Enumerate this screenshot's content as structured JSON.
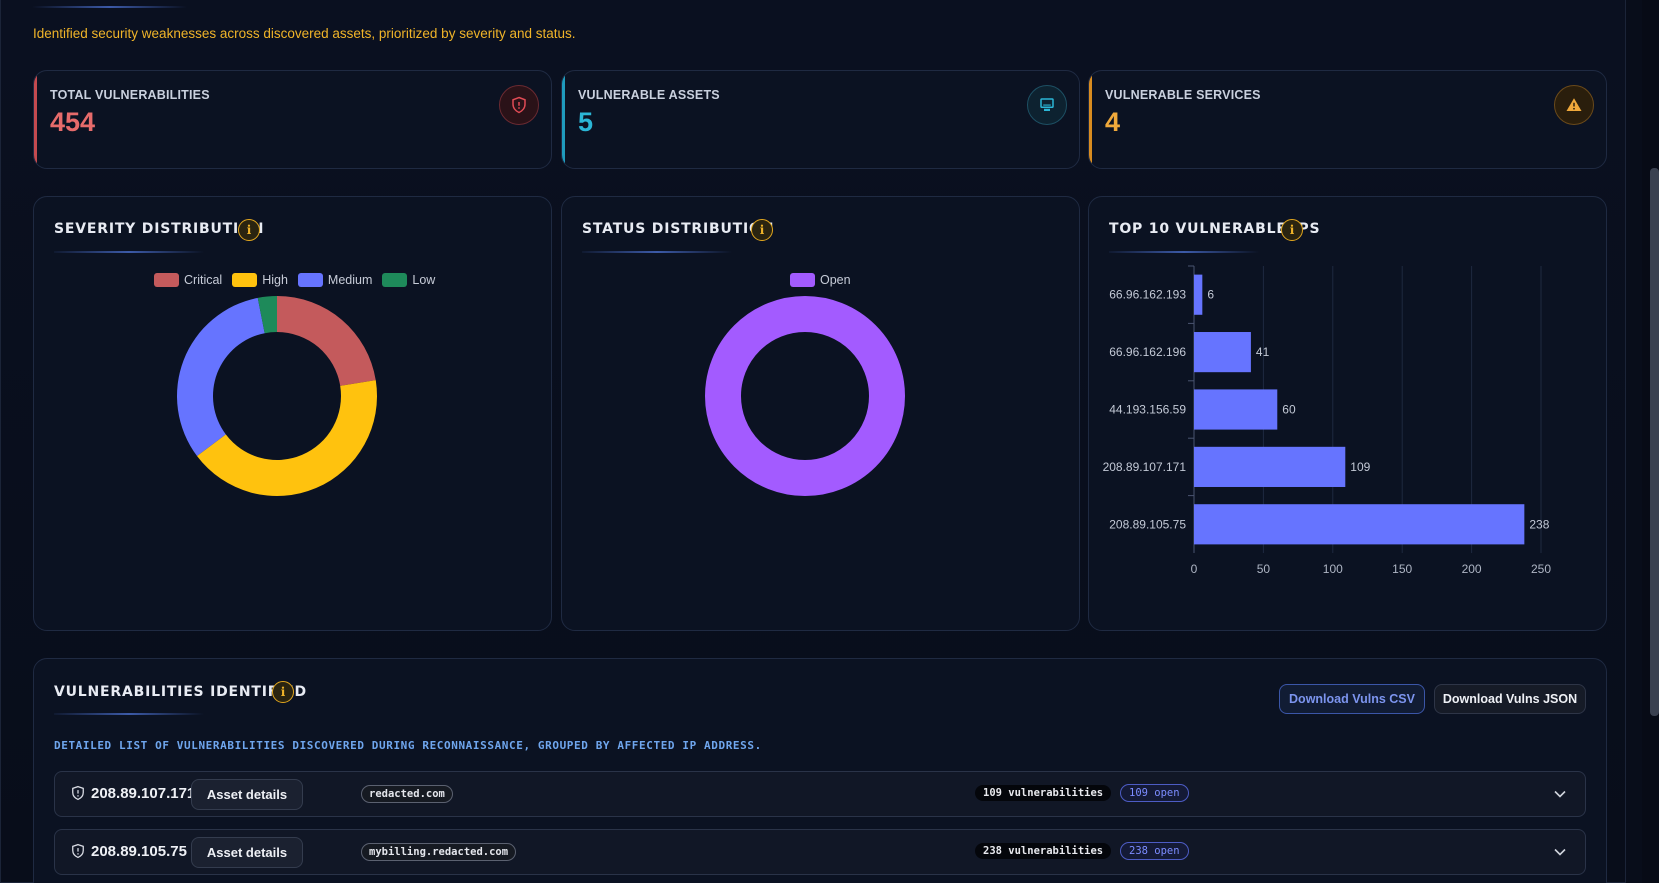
{
  "subtitle": "Identified security weaknesses across discovered assets, prioritized by severity and status.",
  "stats": [
    {
      "label": "TOTAL VULNERABILITIES",
      "value": "454",
      "color": "#e66b6b",
      "icon": "shield-alert-icon"
    },
    {
      "label": "VULNERABLE ASSETS",
      "value": "5",
      "color": "#2bb6d6",
      "icon": "monitor-icon"
    },
    {
      "label": "VULNERABLE SERVICES",
      "value": "4",
      "color": "#f0a93b",
      "icon": "warning-icon"
    }
  ],
  "severity_panel": {
    "title": "SEVERITY DISTRIBUTION",
    "info": "i"
  },
  "status_panel": {
    "title": "STATUS DISTRIBUTION",
    "info": "i"
  },
  "top_ips_panel": {
    "title": "TOP 10 VULNERABLE IPS",
    "info": "i"
  },
  "chart_data": [
    {
      "type": "pie",
      "variant": "doughnut",
      "categories": [
        "Critical",
        "High",
        "Medium",
        "Low"
      ],
      "values": [
        102,
        192,
        146,
        14
      ],
      "colors": [
        "#c45a5c",
        "#ffc20e",
        "#6674ff",
        "#1e8a5a"
      ],
      "legend": "top"
    },
    {
      "type": "pie",
      "variant": "doughnut",
      "categories": [
        "Open"
      ],
      "values": [
        454
      ],
      "colors": [
        "#a35bff"
      ],
      "legend": "top"
    },
    {
      "type": "bar",
      "orientation": "horizontal",
      "categories": [
        "66.96.162.193",
        "66.96.162.196",
        "44.193.156.59",
        "208.89.107.171",
        "208.89.105.75"
      ],
      "values": [
        6,
        41,
        60,
        109,
        238
      ],
      "xlim": [
        0,
        250
      ],
      "xticks": [
        "0",
        "50",
        "100",
        "150",
        "200",
        "250"
      ],
      "color": "#6674ff",
      "grid": true
    }
  ],
  "vulns": {
    "title": "VULNERABILITIES IDENTIFIED",
    "info": "i",
    "csv_label": "Download Vulns CSV",
    "json_label": "Download Vulns JSON",
    "description": "DETAILED LIST OF VULNERABILITIES DISCOVERED DURING RECONNAISSANCE, GROUPED BY AFFECTED IP ADDRESS.",
    "rows": [
      {
        "ip": "208.89.107.171",
        "asset_label": "Asset details",
        "domain": "redacted.com",
        "count": "109 vulnerabilities",
        "open": "109 open"
      },
      {
        "ip": "208.89.105.75",
        "asset_label": "Asset details",
        "domain": "mybilling.redacted.com",
        "count": "238 vulnerabilities",
        "open": "238 open"
      }
    ]
  }
}
